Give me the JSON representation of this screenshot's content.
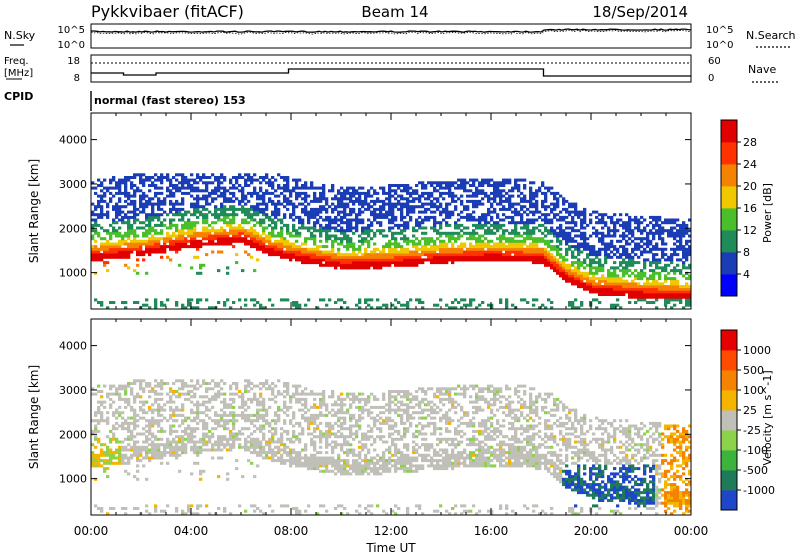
{
  "header": {
    "station": "Pykkvibaer (fitACF)",
    "beam": "Beam 14",
    "date": "18/Sep/2014"
  },
  "noise_panel": {
    "left_label": "N.Sky",
    "right_label": "N.Search",
    "left_ticks": [
      "10^5",
      "10^0"
    ],
    "right_ticks": [
      "10^5",
      "10^0"
    ]
  },
  "freq_panel": {
    "left_label_1": "Freq.",
    "left_label_2": "[MHz]",
    "right_label": "Nave",
    "left_ticks": [
      "18",
      "8"
    ],
    "right_ticks": [
      "60",
      "0"
    ],
    "cpid_label": "CPID",
    "cpid_text": "normal (fast stereo) 153"
  },
  "chart_data": [
    {
      "type": "heatmap",
      "title": "",
      "parameter": "Power",
      "ylabel": "Slant Range [km]",
      "xlabel": "",
      "ylim": [
        180,
        4600
      ],
      "yticks": [
        "4000",
        "3000",
        "2000",
        "1000"
      ],
      "xlim_hours": [
        0,
        24
      ],
      "colorbar_label": "Power [dB]",
      "colorbar_ticks": [
        "28",
        "24",
        "20",
        "16",
        "12",
        "8",
        "4"
      ],
      "colorbar_colors": [
        "#0000ff",
        "#1a3cb4",
        "#1f8a5a",
        "#4bbf2a",
        "#f0c800",
        "#f58200",
        "#ff3200",
        "#e00000"
      ],
      "features": [
        {
          "name": "strong-echo-band",
          "x_hours": [
            0,
            2,
            4,
            6,
            7,
            8,
            10,
            12,
            14,
            16,
            18,
            19,
            20,
            22,
            23.5
          ],
          "range_km": [
            1300,
            1400,
            1600,
            1700,
            1450,
            1300,
            1100,
            1150,
            1250,
            1300,
            1250,
            800,
            550,
            450,
            400
          ]
        }
      ]
    },
    {
      "type": "heatmap",
      "title": "",
      "parameter": "Velocity",
      "ylabel": "Slant Range [km]",
      "xlabel": "Time UT",
      "ylim": [
        180,
        4600
      ],
      "yticks": [
        "4000",
        "3000",
        "2000",
        "1000"
      ],
      "xticks": [
        "00:00",
        "04:00",
        "08:00",
        "12:00",
        "16:00",
        "20:00",
        "00:00"
      ],
      "colorbar_label": "Velocity [m s^-1]",
      "colorbar_ticks": [
        "1000",
        "500",
        "100",
        "25",
        "-25",
        "-100",
        "-500",
        "-1000"
      ],
      "colorbar_colors": [
        "#1e46c8",
        "#1f7a5a",
        "#3cb43c",
        "#8cd24b",
        "#c0c0b8",
        "#f5b400",
        "#f58200",
        "#ff4b00",
        "#e60000"
      ]
    }
  ]
}
